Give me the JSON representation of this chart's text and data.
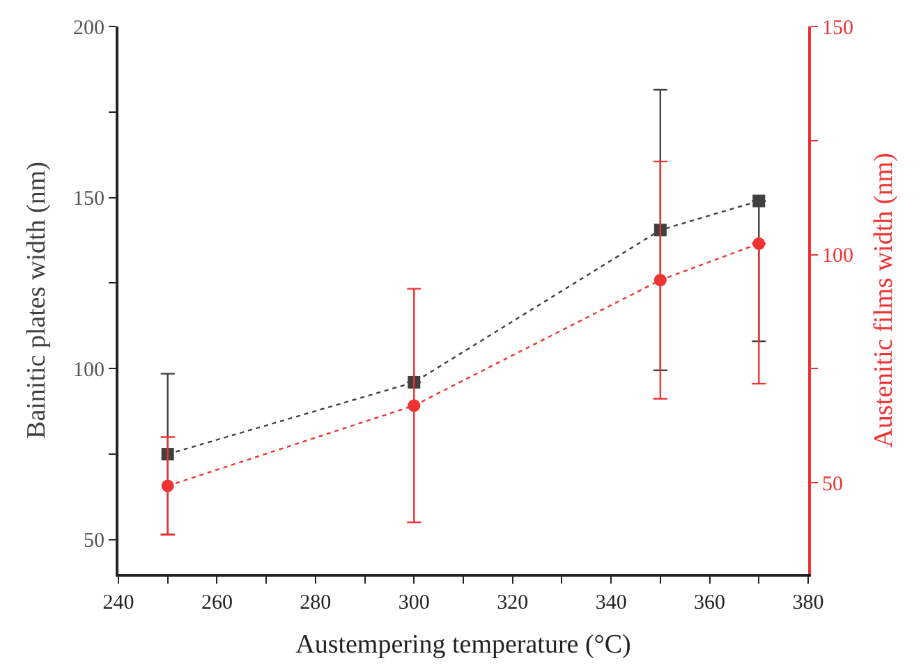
{
  "chart_data": {
    "type": "line",
    "xlabel": "Austempering temperature (°C)",
    "ylabel": "Bainitic plates width (nm)",
    "y2label": "Austenitic films width (nm)",
    "x": [
      250,
      300,
      350,
      370
    ],
    "series": [
      {
        "color": "#404040",
        "marker": "square",
        "values": [
          75,
          96,
          140.5,
          149
        ],
        "errors": [
          23.5,
          null,
          41,
          [
            108,
            149
          ]
        ]
      },
      {
        "color": "#ee3333",
        "marker": "circle",
        "axis": "y2",
        "values": [
          49.3,
          66.9,
          94.4,
          102.4
        ],
        "errors": [
          10.7,
          25.6,
          26,
          [
            71.7,
            102.4
          ]
        ]
      }
    ],
    "line_style": "dotted",
    "xlim": [
      240,
      380
    ],
    "xticks": [
      240,
      {
        "value": 250,
        "label": null
      },
      260,
      {
        "value": 270,
        "label": null
      },
      280,
      {
        "value": 290,
        "label": null
      },
      300,
      {
        "value": 310,
        "label": null
      },
      320,
      {
        "value": 330,
        "label": null
      },
      340,
      {
        "value": 350,
        "label": null
      },
      360,
      {
        "value": 370,
        "label": null
      },
      380
    ],
    "ylim": [
      40,
      200
    ],
    "yticks": [
      50,
      {
        "value": 75,
        "label": null
      },
      100,
      {
        "value": 125,
        "label": null
      },
      150,
      {
        "value": 175,
        "label": null
      },
      200
    ],
    "y2lim": [
      30,
      150
    ],
    "y2ticks": [
      50,
      {
        "value": 75,
        "label": null
      },
      100,
      {
        "value": 125,
        "label": null
      },
      150
    ]
  }
}
